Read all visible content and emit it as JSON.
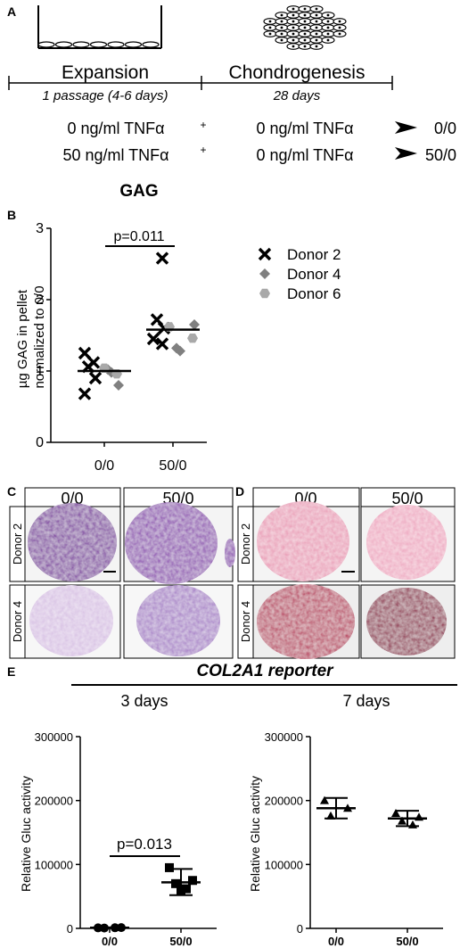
{
  "panel_a": {
    "letter": "A",
    "expansion_label": "Expansion",
    "expansion_sub": "1 passage (4-6 days)",
    "chondro_label": "Chondrogenesis",
    "chondro_sub": "28 days",
    "rows": [
      {
        "left": "0 ng/ml TNFα",
        "plus": "+",
        "right": "0 ng/ml TNFα",
        "result": "0/0"
      },
      {
        "left": "50 ng/ml TNFα",
        "plus": "+",
        "right": "0 ng/ml TNFα",
        "result": "50/0"
      }
    ]
  },
  "panel_b": {
    "letter": "B",
    "legend": [
      {
        "label": "Donor 2",
        "marker": "x-icon",
        "color": "#000000"
      },
      {
        "label": "Donor 4",
        "marker": "diamond-icon",
        "color": "#808080"
      },
      {
        "label": "Donor 6",
        "marker": "hexagon-icon",
        "color": "#a9a9a9"
      }
    ]
  },
  "panel_c": {
    "letter": "C",
    "col_headers": [
      "0/0",
      "50/0"
    ],
    "row_labels": [
      "Donor 2",
      "Donor 4"
    ],
    "stain_colors": {
      "donor2": "#7a2e9e",
      "donor4": "#c9a8d8",
      "donor4_50": "#9d6bbe"
    }
  },
  "panel_d": {
    "letter": "D",
    "col_headers": [
      "0/0",
      "50/0"
    ],
    "row_labels": [
      "Donor 2",
      "Donor 4"
    ],
    "stain_colors": {
      "donor2": "#e8a0b8",
      "donor4_00": "#b8305a",
      "donor4_50": "#9a1448"
    }
  },
  "panel_e": {
    "letter": "E",
    "super_title": "COL2A1 reporter"
  },
  "chart_data": [
    {
      "type": "scatter",
      "title": "GAG",
      "ylabel": "µg GAG in pellet normalized to 0/0",
      "categories": [
        "0/0",
        "50/0"
      ],
      "yticks": [
        "0",
        "1",
        "2",
        "3"
      ],
      "ylim": [
        0,
        3
      ],
      "annotation": "p=0.011",
      "means": [
        1.0,
        1.58
      ],
      "series": [
        {
          "name": "Donor 2",
          "points": [
            {
              "x": "0/0",
              "y": 1.25
            },
            {
              "x": "0/0",
              "y": 1.12
            },
            {
              "x": "0/0",
              "y": 1.06
            },
            {
              "x": "0/0",
              "y": 0.9
            },
            {
              "x": "0/0",
              "y": 0.68
            },
            {
              "x": "50/0",
              "y": 2.58
            },
            {
              "x": "50/0",
              "y": 1.72
            },
            {
              "x": "50/0",
              "y": 1.6
            },
            {
              "x": "50/0",
              "y": 1.45
            },
            {
              "x": "50/0",
              "y": 1.38
            }
          ]
        },
        {
          "name": "Donor 4",
          "points": [
            {
              "x": "0/0",
              "y": 1.02
            },
            {
              "x": "0/0",
              "y": 0.98
            },
            {
              "x": "0/0",
              "y": 0.8
            },
            {
              "x": "50/0",
              "y": 1.65
            },
            {
              "x": "50/0",
              "y": 1.32
            },
            {
              "x": "50/0",
              "y": 1.28
            }
          ]
        },
        {
          "name": "Donor 6",
          "points": [
            {
              "x": "0/0",
              "y": 1.04
            },
            {
              "x": "0/0",
              "y": 0.96
            },
            {
              "x": "50/0",
              "y": 1.62
            },
            {
              "x": "50/0",
              "y": 1.46
            }
          ]
        }
      ]
    },
    {
      "type": "scatter",
      "title": "3 days",
      "ylabel": "Relative Gluc activity",
      "categories": [
        "0/0",
        "50/0"
      ],
      "yticks": [
        "0",
        "100000",
        "200000",
        "300000"
      ],
      "ylim": [
        0,
        300000
      ],
      "annotation": "p=0.013",
      "points": [
        {
          "x": "0/0",
          "y": 800
        },
        {
          "x": "0/0",
          "y": 1200
        },
        {
          "x": "0/0",
          "y": 600
        },
        {
          "x": "0/0",
          "y": 1000
        },
        {
          "x": "50/0",
          "y": 95000
        },
        {
          "x": "50/0",
          "y": 75000
        },
        {
          "x": "50/0",
          "y": 70000
        },
        {
          "x": "50/0",
          "y": 62000
        },
        {
          "x": "50/0",
          "y": 58000
        }
      ],
      "mean": [
        1000,
        72000
      ],
      "err_low": [
        500,
        52000
      ],
      "err_high": [
        1500,
        93000
      ]
    },
    {
      "type": "scatter",
      "title": "7 days",
      "ylabel": "Relative Gluc activity",
      "categories": [
        "0/0",
        "50/0"
      ],
      "yticks": [
        "0",
        "100000",
        "200000",
        "300000"
      ],
      "ylim": [
        0,
        300000
      ],
      "points": [
        {
          "x": "0/0",
          "y": 200000
        },
        {
          "x": "0/0",
          "y": 188000
        },
        {
          "x": "0/0",
          "y": 176000
        },
        {
          "x": "50/0",
          "y": 180000
        },
        {
          "x": "50/0",
          "y": 174000
        },
        {
          "x": "50/0",
          "y": 168000
        },
        {
          "x": "50/0",
          "y": 162000
        }
      ],
      "mean": [
        188000,
        172000
      ],
      "err_low": [
        172000,
        160000
      ],
      "err_high": [
        204000,
        184000
      ]
    }
  ]
}
